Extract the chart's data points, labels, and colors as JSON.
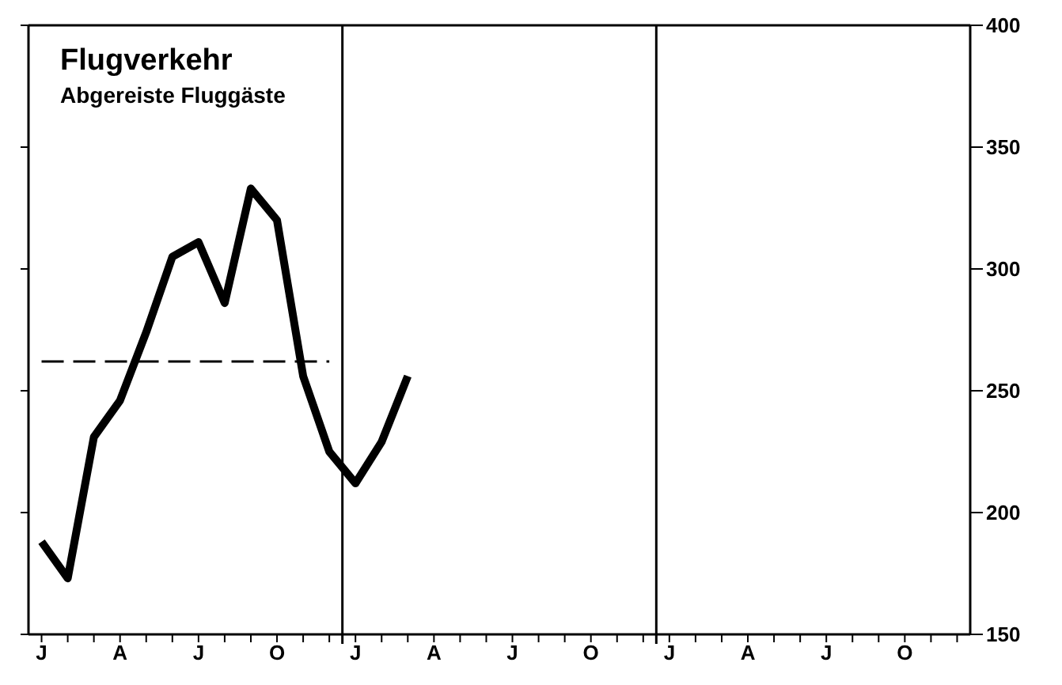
{
  "chart_data": {
    "type": "line",
    "title": "Flugverkehr",
    "subtitle": "Abgereiste Fluggäste",
    "categories": [
      "J",
      null,
      null,
      "A",
      null,
      null,
      "J",
      null,
      null,
      "O",
      null,
      null,
      "J",
      null,
      null,
      "A",
      null,
      null,
      "J",
      null,
      null,
      "O",
      null,
      null,
      "J",
      null,
      null,
      "A",
      null,
      null,
      "J",
      null,
      null,
      "O",
      null,
      null
    ],
    "series": [
      {
        "color": "#000000",
        "values": [
          188,
          173,
          231,
          246,
          274,
          305,
          311,
          286,
          333,
          320,
          256,
          225,
          212,
          229,
          256,
          null,
          null,
          null,
          null,
          null,
          null,
          null,
          null,
          null,
          null,
          null,
          null,
          null,
          null,
          null,
          null,
          null,
          null,
          null,
          null,
          null
        ]
      }
    ],
    "ylim": [
      150,
      400
    ],
    "yticks": [
      150,
      200,
      250,
      300,
      350,
      400
    ],
    "ref_lines": [
      {
        "axis": "y",
        "value": 262,
        "color": "#000000",
        "line_style": "dashed"
      }
    ],
    "marker": "none",
    "line_style": "solid"
  }
}
